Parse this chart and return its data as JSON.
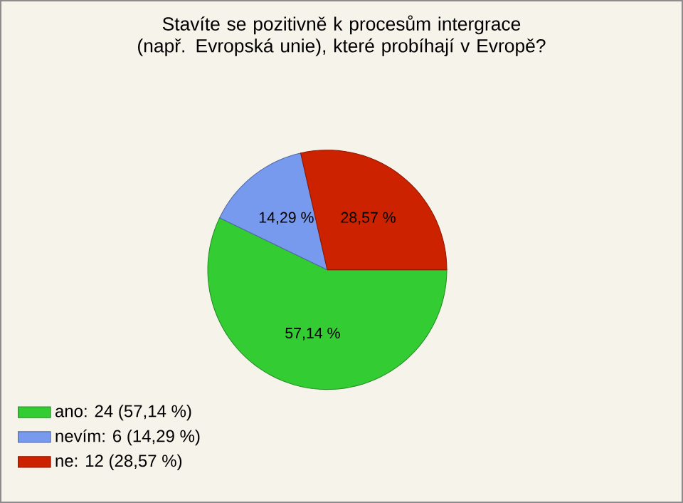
{
  "chart_data": {
    "type": "pie",
    "title": "Stavíte se pozitivně k procesům intergrace (např. Evropská unie), které probíhají v Evropě?",
    "categories": [
      "ano: 24 (57,14 %)",
      "nevím: 6 (14,29 %)",
      "ne: 12 (28,57 %)"
    ],
    "values": [
      57.14,
      14.29,
      28.57
    ],
    "colors": [
      "#33cc33",
      "#7799ee",
      "#cc2200"
    ],
    "value_labels": [
      "57,14 %",
      "14,29 %",
      "28,57 %"
    ],
    "legend": "bottom left"
  }
}
